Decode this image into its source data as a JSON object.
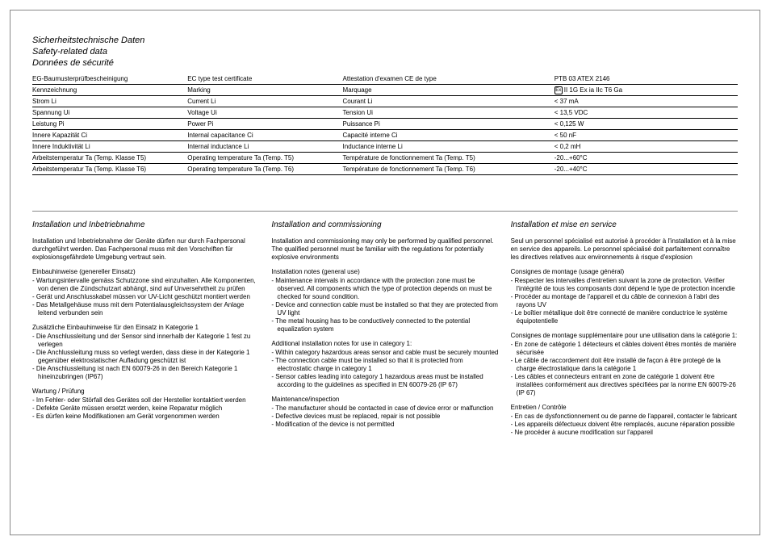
{
  "titles": {
    "de": "Sicherheitstechnische Daten",
    "en": "Safety-related data",
    "fr": "Données de sécurité"
  },
  "table": {
    "rows": [
      {
        "c1": "EG-Baumusterprüfbescheinigung",
        "c2": "EC type test certificate",
        "c3": "Attestation d'examen CE de type",
        "c4": "PTB 03 ATEX 2146"
      },
      {
        "c1": "Kennzeichnung",
        "c2": "Marking",
        "c3": "Marquage",
        "c4": "II 1G Ex ia IIc T6 Ga",
        "icon": true
      },
      {
        "c1": "Strom Li",
        "c2": "Current Li",
        "c3": "Courant Li",
        "c4": "< 37 mA"
      },
      {
        "c1": "Spannung Ui",
        "c2": "Voltage Ui",
        "c3": "Tension Ui",
        "c4": "< 13,5 VDC"
      },
      {
        "c1": "Leistung Pi",
        "c2": "Power Pi",
        "c3": "Puissance Pi",
        "c4": "< 0,125 W"
      },
      {
        "c1": "Innere Kapazität Ci",
        "c2": "Internal capacitance Ci",
        "c3": "Capacité interne Ci",
        "c4": "< 50 nF"
      },
      {
        "c1": "Innere Induktivität Li",
        "c2": "Internal inductance Li",
        "c3": "Inductance interne Li",
        "c4": "< 0,2 mH"
      },
      {
        "c1": "Arbeitstemperatur Ta (Temp. Klasse T5)",
        "c2": "Operating temperature Ta (Temp. T5)",
        "c3": "Température de fonctionnement Ta (Temp. T5)",
        "c4": "-20...+60°C"
      },
      {
        "c1": "Arbeitstemperatur Ta (Temp. Klasse T6)",
        "c2": "Operating temperature Ta (Temp. T6)",
        "c3": "Température de fonctionnement Ta (Temp. T6)",
        "c4": "-20...+40°C"
      }
    ]
  },
  "sections": {
    "de": {
      "heading": "Installation und Inbetriebnahme",
      "intro": "Installation und Inbetriebnahme der Geräte dürfen nur durch Fachpersonal durchgeführt werden. Das Fachpersonal muss mit den Vorschriften für explosionsgefährdete Umgebung vertraut sein.",
      "b1_title": "Einbauhinweise (genereller Einsatz)",
      "b1_items": [
        "- Wartungsintervalle gemäss Schutzzone sind einzuhalten. Alle Komponenten, von denen die Zündschutzart abhängt, sind auf Unversehrtheit zu prüfen",
        "- Gerät und Anschlusskabel müssen vor UV-Licht geschützt montiert werden",
        "- Das Metallgehäuse muss mit dem Potentialausgleichssystem der Anlage leitend verbunden sein"
      ],
      "b2_title": "Zusätzliche Einbauhinweise für den Einsatz in Kategorie 1",
      "b2_items": [
        "- Die Anschlussleitung und der Sensor sind innerhalb der Kategorie 1 fest zu verlegen",
        "- Die Anchlussleitung muss so verlegt werden, dass diese in der Kategorie 1 gegenüber elektrostatischer Aufladung geschützt ist",
        "- Die Anschlussleitung ist nach EN 60079-26 in den Bereich Kategorie 1 hineinzubringen (IP67)"
      ],
      "b3_title": "Wartung / Prüfung",
      "b3_items": [
        "- Im Fehler- oder Störfall des Gerätes soll der Hersteller kontaktiert werden",
        "- Defekte Geräte müssen ersetzt werden, keine Reparatur möglich",
        "- Es dürfen keine Modifikationen am Gerät vorgenommen werden"
      ]
    },
    "en": {
      "heading": "Installation and commissioning",
      "intro": "Installation and commissioning may only be performed by qualified personnel. The qualified personnel must be familiar with the regulations for potentially explosive environments",
      "b1_title": "Installation notes (general use)",
      "b1_items": [
        "- Maintenance intervals in accordance with the protection zone must be observed. All components which the type of protection depends on must be checked for sound condition.",
        "- Device and connection cable must be installed so that they are protected from UV light",
        "- The metal housing has to be conductively connected to the potential equalization system"
      ],
      "b2_title": "Additional installation notes for use in category 1:",
      "b2_items": [
        "- Within category hazardous areas sensor and cable must be securely mounted",
        "- The connection cable must be installed so that it is protected from electrostatic charge in category 1",
        "- Sensor cables leading into category 1 hazardous areas must be installed according to the guidelines as specified in EN 60079-26 (IP 67)"
      ],
      "b3_title": "Maintenance/inspection",
      "b3_items": [
        "- The manufacturer should be contacted in case of device error or malfunction",
        "- Defective devices must be replaced, repair is not possible",
        "- Modification of the device is not permitted"
      ]
    },
    "fr": {
      "heading": "Installation et mise en service",
      "intro": "Seul un personnel spécialisé est autorisé à procéder à l'installation et à la mise en service des appareils. Le personnel spécialisé doit parfaitement connaître les directives relatives aux environnements à risque d'explosion",
      "b1_title": "Consignes de montage (usage général)",
      "b1_items": [
        "- Respecter les intervalles d'entretien suivant la zone de protection. Vérifier l'intégrité de tous les composants dont dépend le type de protection incendie",
        "- Procéder au montage de l'appareil et du câble de connexion à l'abri des rayons UV",
        "- Le boîtier métallique doit être connecté de manière conductrice le système équipotentielle"
      ],
      "b2_title": "Consignes de montage supplémentaire pour une utilisation dans la catégorie 1:",
      "b2_items": [
        "- En zone de catégorie 1 détecteurs et câbles doivent êtres montés de manière sécurisée",
        "- Le câble de raccordement doit être installé de façon à être protegé de la charge électrostatique dans la catégorie 1",
        "- Les câbles et connecteurs entrant en zone de catégorie 1 doivent être installées conformément aux directives spécifiées par la norme EN 60079-26 (IP 67)"
      ],
      "b3_title": "Entretien / Contrôle",
      "b3_items": [
        "- En cas de dysfonctionnement ou de panne de l'appareil, contacter le fabricant",
        "- Les appareils défectueux doivent être remplacés, aucune réparation possible",
        "- Ne procéder à aucune modification sur l'appareil"
      ]
    }
  }
}
